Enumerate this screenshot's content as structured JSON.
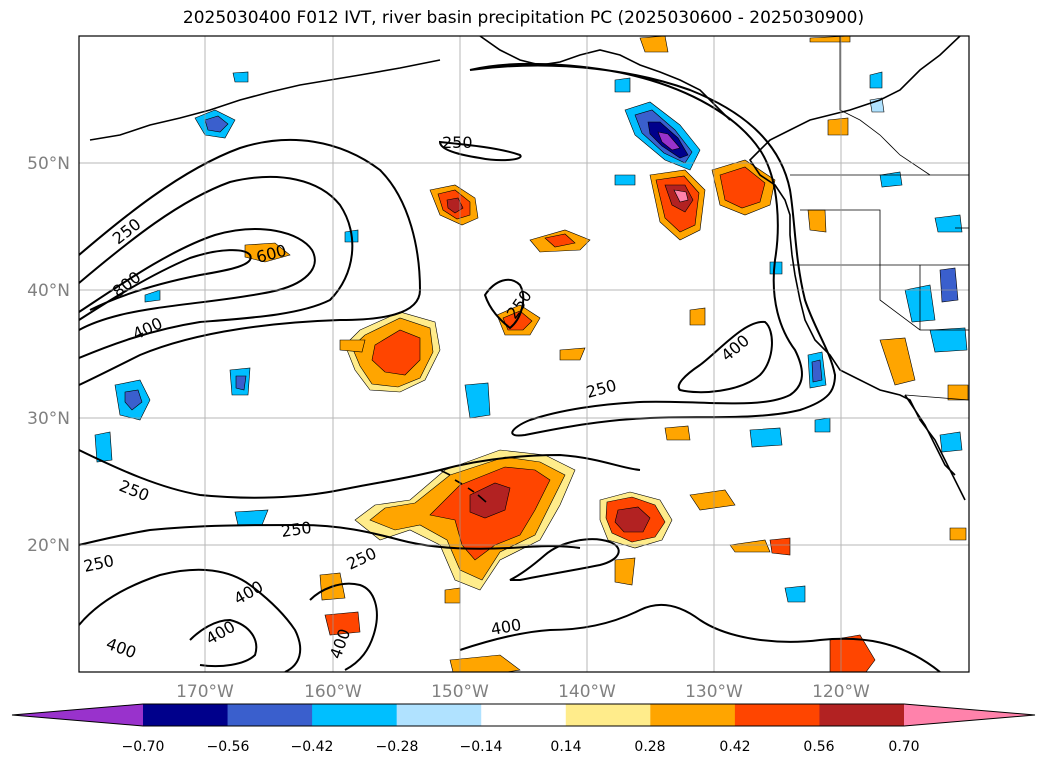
{
  "title": "2025030400 F012 IVT, river basin precipitation PC (2025030600 - 2025030900)",
  "map": {
    "lat_labels": [
      "50°N",
      "40°N",
      "30°N",
      "20°N"
    ],
    "lon_labels": [
      "170°W",
      "160°W",
      "150°W",
      "140°W",
      "130°W",
      "120°W"
    ],
    "grid": true
  },
  "contour_labels": [
    "250",
    "250",
    "800",
    "400",
    "600",
    "250",
    "250",
    "400",
    "250",
    "250",
    "250",
    "250",
    "250",
    "400",
    "400",
    "400",
    "400",
    "400"
  ],
  "colorbar": {
    "ticks": [
      "−0.70",
      "−0.56",
      "−0.42",
      "−0.28",
      "−0.14",
      "0.14",
      "0.28",
      "0.42",
      "0.56",
      "0.70"
    ],
    "colors": [
      "#9932cc",
      "#00008b",
      "#3a5fcd",
      "#00bfff",
      "#b0e2ff",
      "#ffffff",
      "#ffec8b",
      "#ffa500",
      "#ff4500",
      "#b22222",
      "#ff82ab"
    ]
  }
}
